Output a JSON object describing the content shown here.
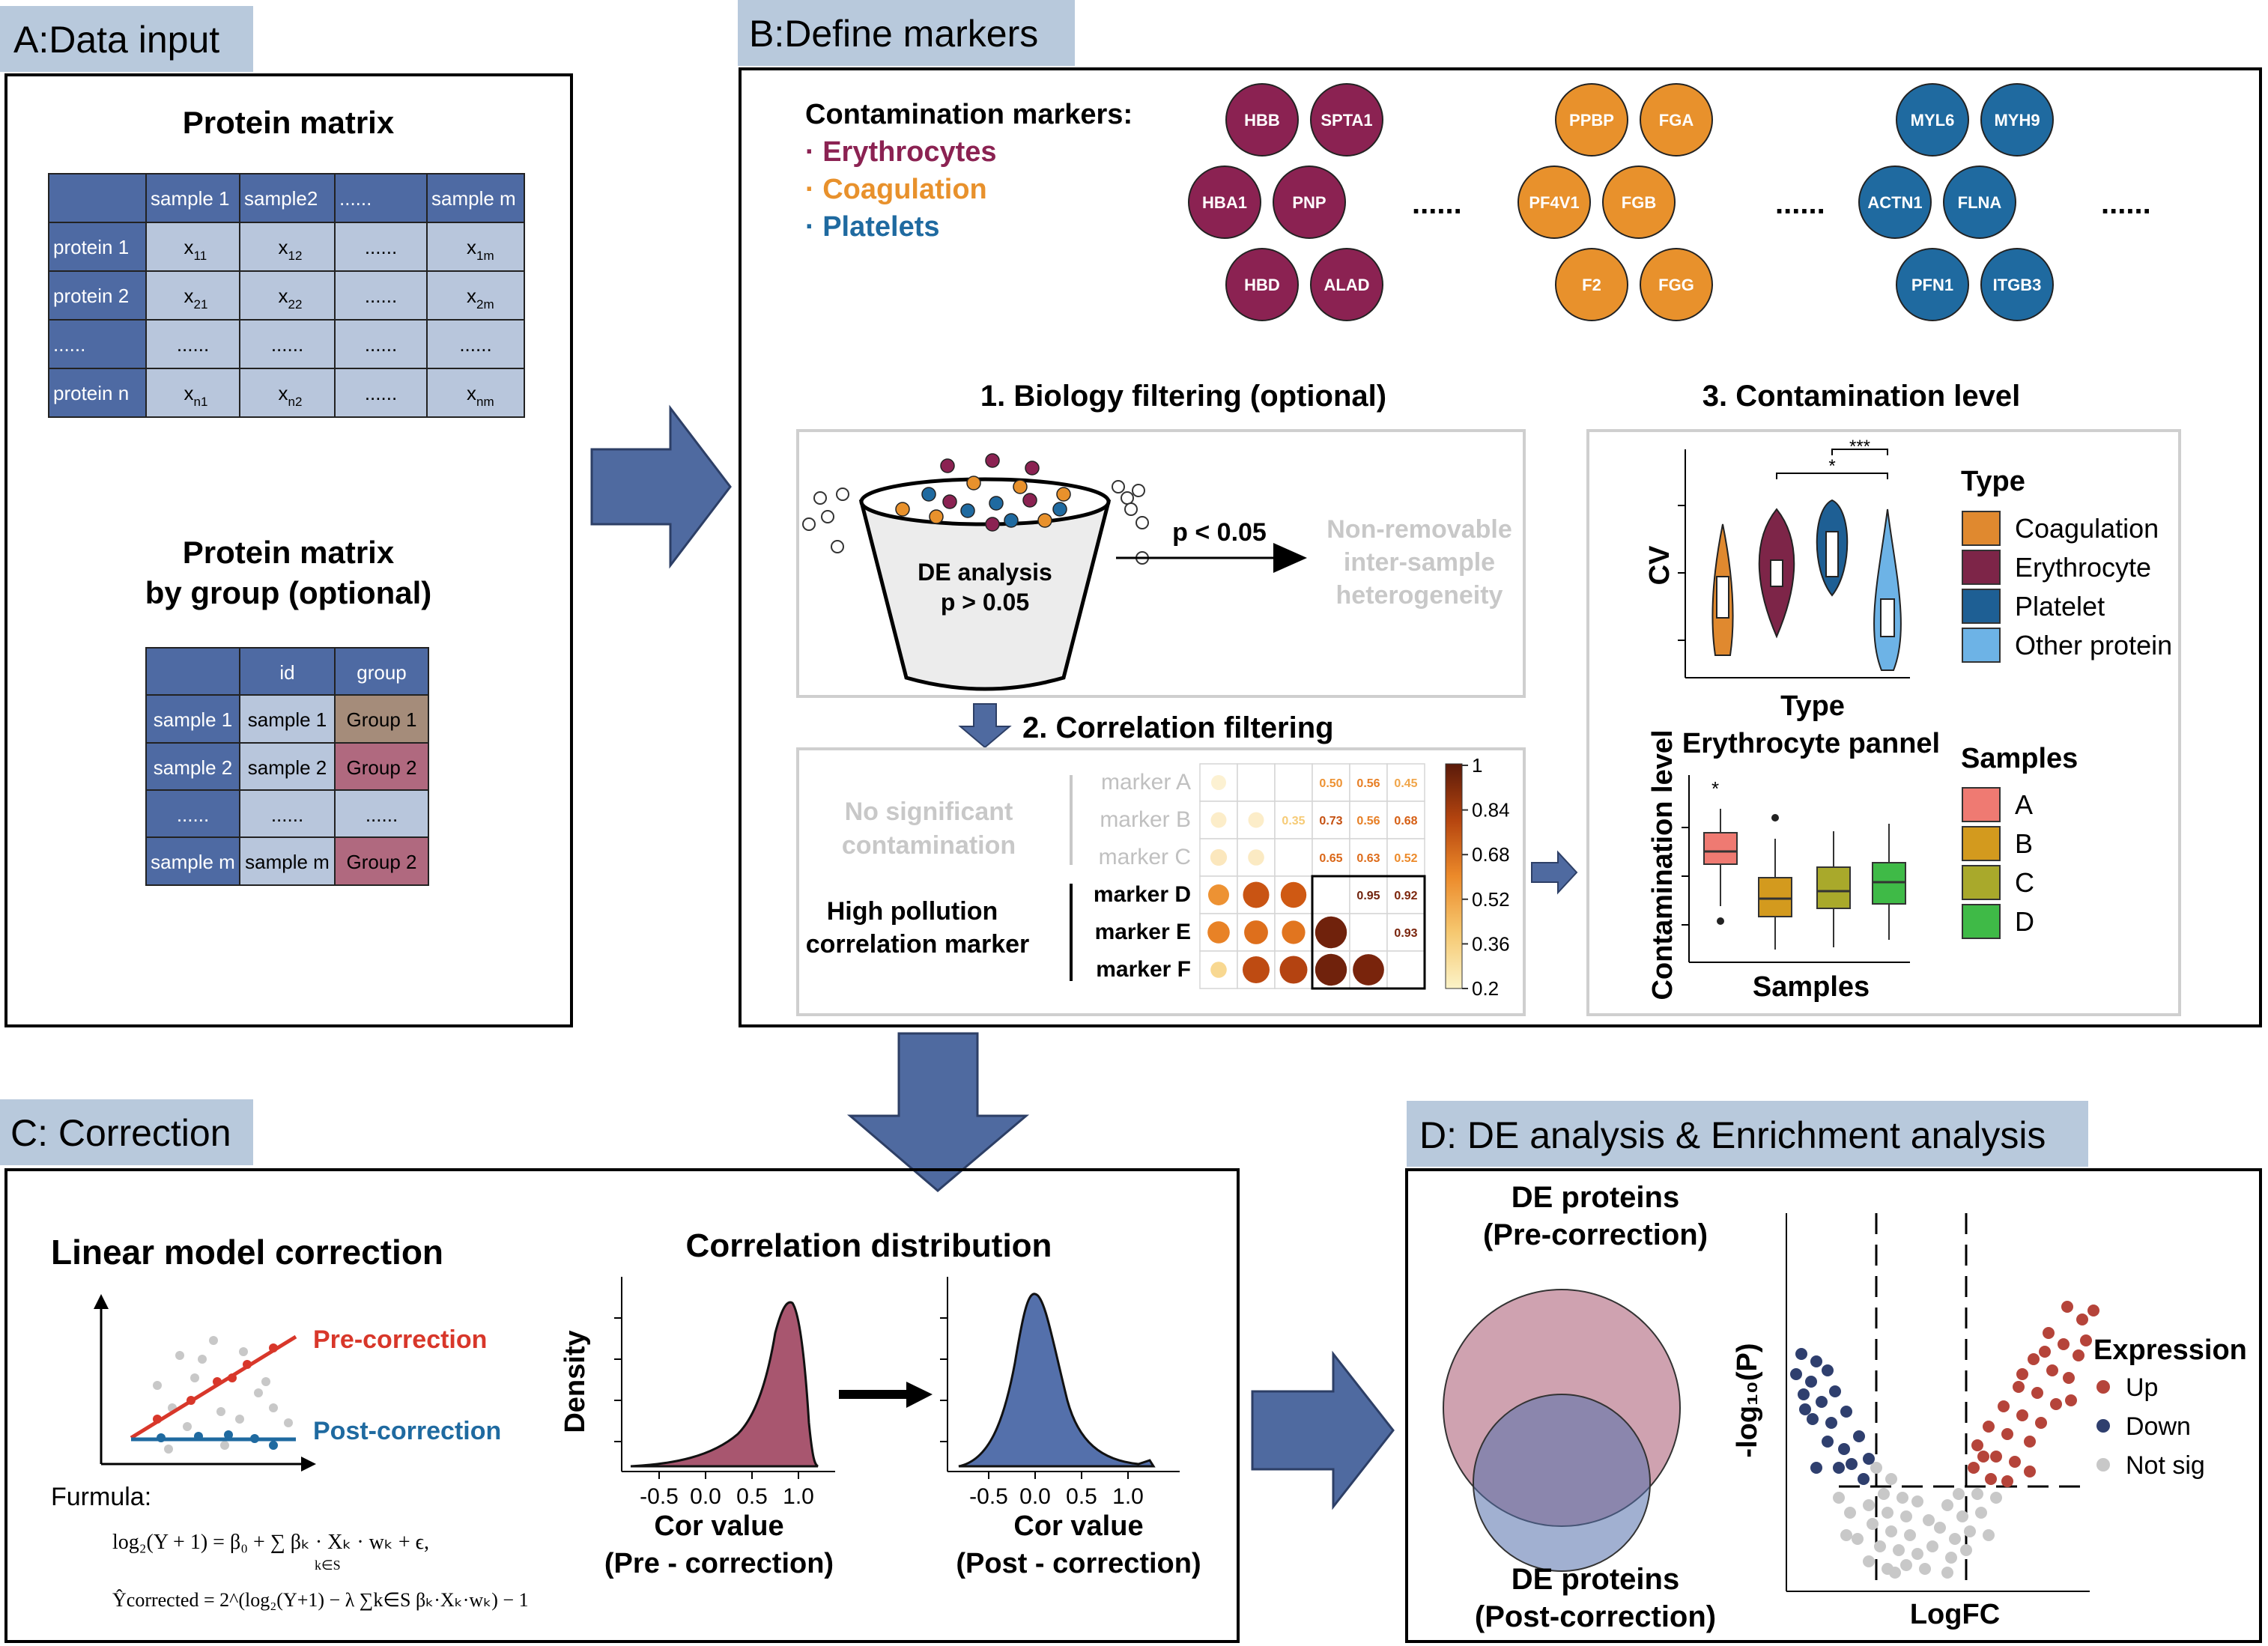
{
  "panel_a": {
    "title": "A:Data input",
    "matrix1": {
      "title": "Protein matrix",
      "header": [
        "",
        "sample 1",
        "sample2",
        "......",
        "sample m"
      ],
      "rows": [
        {
          "label": "protein 1",
          "cells": [
            [
              "x",
              "11"
            ],
            [
              "x",
              "12"
            ],
            [
              "......",
              ""
            ],
            [
              "x",
              "1m"
            ]
          ]
        },
        {
          "label": "protein 2",
          "cells": [
            [
              "x",
              "21"
            ],
            [
              "x",
              "22"
            ],
            [
              "......",
              ""
            ],
            [
              "x",
              "2m"
            ]
          ]
        },
        {
          "label": "......",
          "cells": [
            [
              "......",
              ""
            ],
            [
              "......",
              ""
            ],
            [
              "......",
              ""
            ],
            [
              "......",
              ""
            ]
          ]
        },
        {
          "label": "protein n",
          "cells": [
            [
              "x",
              "n1"
            ],
            [
              "x",
              "n2"
            ],
            [
              "......",
              ""
            ],
            [
              "x",
              "nm"
            ]
          ]
        }
      ]
    },
    "matrix2": {
      "title_line1": "Protein matrix",
      "title_line2": "by group (optional)",
      "header": [
        "",
        "id",
        "group"
      ],
      "rows": [
        {
          "cells": [
            "sample 1",
            "sample 1",
            "Group 1"
          ],
          "group_color": "#a58c7a"
        },
        {
          "cells": [
            "sample 2",
            "sample 2",
            "Group 2"
          ],
          "group_color": "#b0697f"
        },
        {
          "cells": [
            "......",
            "......",
            "......"
          ],
          "group_color": "#b8c6dc"
        },
        {
          "cells": [
            "sample m",
            "sample m",
            "Group 2"
          ],
          "group_color": "#b0697f"
        }
      ]
    }
  },
  "panel_b": {
    "title": "B:Define markers",
    "contamination_label": "Contamination markers:",
    "categories": [
      {
        "label": "· Erythrocytes",
        "color": "#8b2252"
      },
      {
        "label": "· Coagulation",
        "color": "#e8912c"
      },
      {
        "label": "· Platelets",
        "color": "#1f6aa0"
      }
    ],
    "marker_groups": [
      {
        "color": "#8b2252",
        "markers": [
          "HBB",
          "SPTA1",
          "HBA1",
          "PNP",
          "HBD",
          "ALAD"
        ]
      },
      {
        "color": "#e8912c",
        "markers": [
          "PPBP",
          "FGA",
          "PF4V1",
          "FGB",
          "F2",
          "FGG"
        ]
      },
      {
        "color": "#1f6aa0",
        "markers": [
          "MYL6",
          "MYH9",
          "ACTN1",
          "FLNA",
          "PFN1",
          "ITGB3"
        ]
      }
    ],
    "ellipsis": "......",
    "biology_filtering": {
      "title": "1. Biology filtering (optional)",
      "funnel_line1": "DE analysis",
      "funnel_line2": "p > 0.05",
      "arrow_label": "p < 0.05",
      "outcome_line1": "Non-removable",
      "outcome_line2": "inter-sample",
      "outcome_line3": "heterogeneity"
    },
    "correlation_filtering": {
      "title": "2. Correlation filtering",
      "no_sig_line1": "No significant",
      "no_sig_line2": "contamination",
      "high_line1": "High pollution",
      "high_line2": "correlation marker",
      "markers_gray": [
        "marker A",
        "marker B",
        "marker C"
      ],
      "markers_bold": [
        "marker D",
        "marker E",
        "marker F"
      ],
      "matrix_values": [
        [
          "",
          "",
          "",
          "0.50",
          "0.56",
          "0.45"
        ],
        [
          "",
          "",
          "0.35",
          "0.73",
          "0.56",
          "0.68"
        ],
        [
          "",
          "",
          "",
          "0.65",
          "0.63",
          "0.52"
        ],
        [
          "",
          "",
          "",
          "",
          "0.95",
          "0.92"
        ],
        [
          "",
          "",
          "",
          "",
          "",
          "0.93"
        ],
        [
          "",
          "",
          "",
          "",
          "",
          ""
        ]
      ],
      "colorbar_ticks": [
        "1",
        "0.84",
        "0.68",
        "0.52",
        "0.36",
        "0.2"
      ]
    },
    "contamination_level": {
      "title": "3. Contamination level",
      "violin": {
        "ylabel": "CV",
        "xlabel": "Type",
        "legend_title": "Type",
        "legend": [
          {
            "label": "Coagulation",
            "color": "#e0892f"
          },
          {
            "label": "Erythrocyte",
            "color": "#7d2548"
          },
          {
            "label": "Platelet",
            "color": "#1e5f94"
          },
          {
            "label": "Other protein",
            "color": "#6db3e6"
          }
        ],
        "sig1": "***",
        "sig2": "*"
      },
      "box": {
        "title": "Erythrocyte pannel",
        "ylabel": "Contamination level",
        "xlabel": "Samples",
        "legend_title": "Samples",
        "star": "*",
        "legend": [
          {
            "label": "A",
            "color": "#ef7a72"
          },
          {
            "label": "B",
            "color": "#d39a1e"
          },
          {
            "label": "C",
            "color": "#a9a92b"
          },
          {
            "label": "D",
            "color": "#3fba47"
          }
        ]
      }
    }
  },
  "panel_c": {
    "title": "C: Correction",
    "linear_title": "Linear model correction",
    "pre_label": "Pre-correction",
    "post_label": "Post-correction",
    "pre_color": "#d8372a",
    "post_color": "#1f6aa0",
    "formula_label": "Furmula:",
    "formula1": "log₂(Y + 1) = β₀ + ∑ βₖ · Xₖ · wₖ + ϵ,",
    "formula1_sub": "k∈S",
    "formula2": "Ŷcorrected = 2^(log₂(Y+1) − λ ∑k∈S βₖ·Xₖ·wₖ) − 1",
    "dist_title": "Correlation distribution",
    "density_label": "Density",
    "ticks": [
      "-0.5",
      "0.0",
      "0.5",
      "1.0"
    ],
    "xlabel": "Cor value",
    "pre_caption": "(Pre - correction)",
    "post_caption": "(Post - correction)"
  },
  "panel_d": {
    "title": "D: DE analysis & Enrichment analysis",
    "venn_top_line1": "DE proteins",
    "venn_top_line2": "(Pre-correction)",
    "venn_bottom_line1": "DE proteins",
    "venn_bottom_line2": "(Post-correction)",
    "ylabel": "-log₁₀(P)",
    "xlabel": "LogFC",
    "legend_title": "Expression",
    "legend": [
      {
        "label": "Up",
        "color": "#b5443a"
      },
      {
        "label": "Down",
        "color": "#2f3f6e"
      },
      {
        "label": "Not sig",
        "color": "#c8c8c8"
      }
    ]
  },
  "colors": {
    "header_blue": "#4e6aa3",
    "cell_light": "#b8c6dc",
    "title_tab": "#b8c9dc",
    "arrow": "#4f6aa0"
  }
}
